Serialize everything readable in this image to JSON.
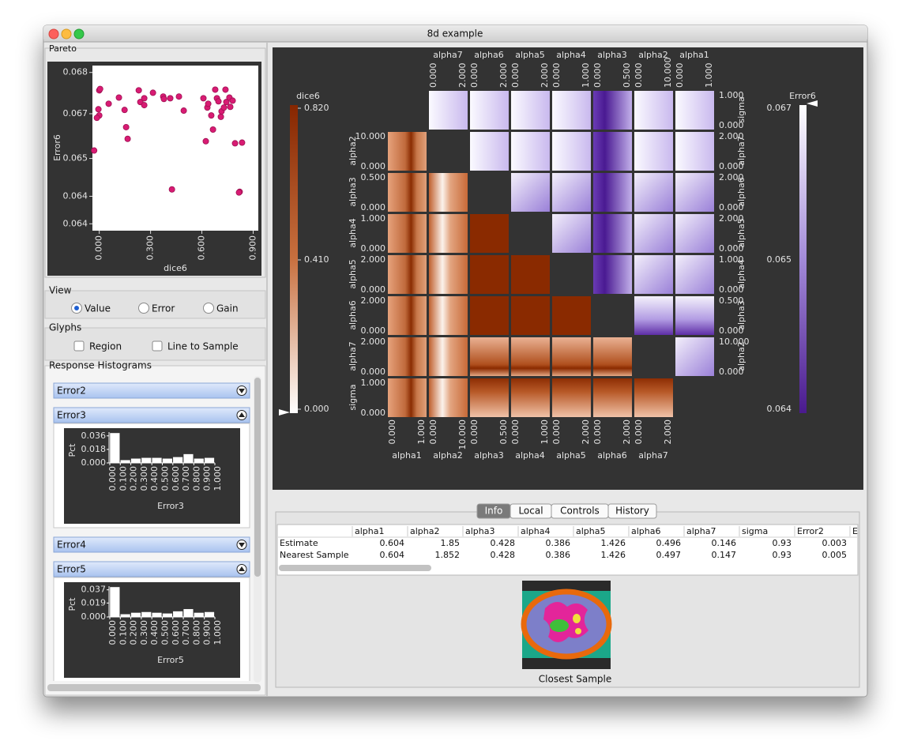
{
  "window": {
    "title": "8d example"
  },
  "pareto": {
    "title": "Pareto",
    "type": "scatter",
    "x_label": "dice6",
    "y_label": "Error6",
    "color": "#d81b73",
    "x": [
      -0.03,
      0.0,
      0.005,
      -0.005,
      0.0,
      -0.014,
      0.055,
      0.115,
      0.148,
      0.157,
      0.166,
      0.231,
      0.24,
      0.263,
      0.263,
      0.314,
      0.374,
      0.378,
      0.415,
      0.425,
      0.466,
      0.494,
      0.609,
      0.623,
      0.632,
      0.637,
      0.655,
      0.665,
      0.678,
      0.688,
      0.697,
      0.711,
      0.715,
      0.729,
      0.738,
      0.743,
      0.761,
      0.766,
      0.78,
      0.794,
      0.821,
      0.835,
      0.817
    ],
    "y": [
      0.06573,
      0.06748,
      0.06752,
      0.06693,
      0.06675,
      0.06668,
      0.06709,
      0.06727,
      0.06691,
      0.06641,
      0.06607,
      0.06748,
      0.06714,
      0.06725,
      0.06705,
      0.06741,
      0.0673,
      0.06723,
      0.06725,
      0.0646,
      0.0673,
      0.06689,
      0.06725,
      0.066,
      0.06698,
      0.06709,
      0.06675,
      0.06634,
      0.0675,
      0.06725,
      0.06716,
      0.06671,
      0.06687,
      0.06698,
      0.0675,
      0.06714,
      0.06727,
      0.067,
      0.06718,
      0.06594,
      0.06453,
      0.06596,
      0.06451
    ],
    "xlim": [
      -0.04,
      0.93
    ],
    "ylim": [
      0.0634,
      0.0682
    ],
    "xticks": [
      {
        "value": 0,
        "label": "0.000"
      },
      {
        "value": 0.3,
        "label": "0.300"
      },
      {
        "value": 0.6,
        "label": "0.600"
      },
      {
        "value": 0.9,
        "label": "0.900"
      }
    ],
    "yticks": [
      0.068,
      {
        "value": 0.0668,
        "label": "0.067"
      },
      {
        "value": 0.0655,
        "label": "0.065"
      },
      {
        "value": 0.0644,
        "label": "0.064"
      },
      {
        "value": 0.0636,
        "label": "0.064"
      }
    ]
  },
  "view": {
    "title": "View",
    "options": [
      "Value",
      "Error",
      "Gain"
    ],
    "selected": 0
  },
  "glyphs": {
    "title": "Glyphs",
    "options": [
      "Region",
      "Line to Sample"
    ]
  },
  "histograms": {
    "title": "Response Histograms",
    "panels": [
      {
        "name": "Error2",
        "expanded": false
      },
      {
        "name": "Error3",
        "expanded": true,
        "chart": {
          "type": "histogram",
          "x_label": "Error3",
          "y_label": "Pct",
          "color": "#ffffff",
          "bins": [
            0,
            0.1,
            0.2,
            0.3,
            0.4,
            0.5,
            0.6,
            0.7,
            0.8,
            0.9,
            1.0
          ],
          "counts": [
            0.04,
            0.004,
            0.006,
            0.007,
            0.007,
            0.006,
            0.008,
            0.012,
            0.006,
            0.007
          ],
          "xlim": [
            0,
            1.0
          ],
          "ylim": [
            0,
            0.041
          ],
          "yticks": [
            0.036,
            0.018,
            {
              "value": 0,
              "label": "0.000"
            }
          ],
          "xticks": [
            {
              "value": 0,
              "label": "0.000"
            },
            {
              "value": 0.1,
              "label": "0.100"
            },
            {
              "value": 0.2,
              "label": "0.200"
            },
            {
              "value": 0.3,
              "label": "0.300"
            },
            {
              "value": 0.4,
              "label": "0.400"
            },
            {
              "value": 0.5,
              "label": "0.500"
            },
            {
              "value": 0.6,
              "label": "0.600"
            },
            {
              "value": 0.7,
              "label": "0.700"
            },
            {
              "value": 0.8,
              "label": "0.800"
            },
            {
              "value": 0.9,
              "label": "0.900"
            },
            {
              "value": 1.0,
              "label": "1.000"
            }
          ]
        }
      },
      {
        "name": "Error4",
        "expanded": false
      },
      {
        "name": "Error5",
        "expanded": true,
        "chart": {
          "type": "histogram",
          "x_label": "Error5",
          "y_label": "Pct",
          "color": "#ffffff",
          "bins": [
            0,
            0.1,
            0.2,
            0.3,
            0.4,
            0.5,
            0.6,
            0.7,
            0.8,
            0.9,
            1.0
          ],
          "counts": [
            0.041,
            0.004,
            0.006,
            0.007,
            0.006,
            0.005,
            0.008,
            0.011,
            0.006,
            0.007
          ],
          "xlim": [
            0,
            1.0
          ],
          "ylim": [
            0,
            0.042
          ],
          "yticks": [
            0.037,
            0.019,
            {
              "value": 0,
              "label": "0.000"
            }
          ],
          "xticks": [
            {
              "value": 0,
              "label": "0.000"
            },
            {
              "value": 0.1,
              "label": "0.100"
            },
            {
              "value": 0.2,
              "label": "0.200"
            },
            {
              "value": 0.3,
              "label": "0.300"
            },
            {
              "value": 0.4,
              "label": "0.400"
            },
            {
              "value": 0.5,
              "label": "0.500"
            },
            {
              "value": 0.6,
              "label": "0.600"
            },
            {
              "value": 0.7,
              "label": "0.700"
            },
            {
              "value": 0.8,
              "label": "0.800"
            },
            {
              "value": 0.9,
              "label": "0.900"
            },
            {
              "value": 1.0,
              "label": "1.000"
            }
          ]
        }
      }
    ]
  },
  "matrix": {
    "params": [
      "alpha1",
      "alpha2",
      "alpha3",
      "alpha4",
      "alpha5",
      "alpha6",
      "alpha7",
      "sigma"
    ],
    "ranges": [
      [
        "0.000",
        "1.000"
      ],
      [
        "0.000",
        "10.000"
      ],
      [
        "0.000",
        "0.500"
      ],
      [
        "0.000",
        "1.000"
      ],
      [
        "0.000",
        "2.000"
      ],
      [
        "0.000",
        "2.000"
      ],
      [
        "0.000",
        "2.000"
      ],
      [
        "0.000",
        "1.000"
      ]
    ],
    "color_left": {
      "title": "dice6",
      "labels": [
        "0.820",
        "0.410",
        "0.000"
      ]
    },
    "color_right": {
      "title": "Error6",
      "labels": [
        "0.067",
        "0.065",
        "0.064"
      ]
    }
  },
  "tabs": {
    "items": [
      "Info",
      "Local",
      "Controls",
      "History"
    ],
    "selected": 0
  },
  "table": {
    "columns": [
      "alpha1",
      "alpha2",
      "alpha3",
      "alpha4",
      "alpha5",
      "alpha6",
      "alpha7",
      "sigma",
      "Error2",
      "E"
    ],
    "rows": [
      {
        "label": "Estimate",
        "values": [
          0.604,
          1.85,
          0.428,
          0.386,
          1.426,
          0.496,
          0.146,
          0.93,
          0.003
        ]
      },
      {
        "label": "Nearest Sample",
        "values": [
          0.604,
          1.852,
          0.428,
          0.386,
          1.426,
          0.497,
          0.147,
          0.93,
          0.005
        ]
      }
    ]
  },
  "sample": {
    "caption": "Closest Sample"
  }
}
